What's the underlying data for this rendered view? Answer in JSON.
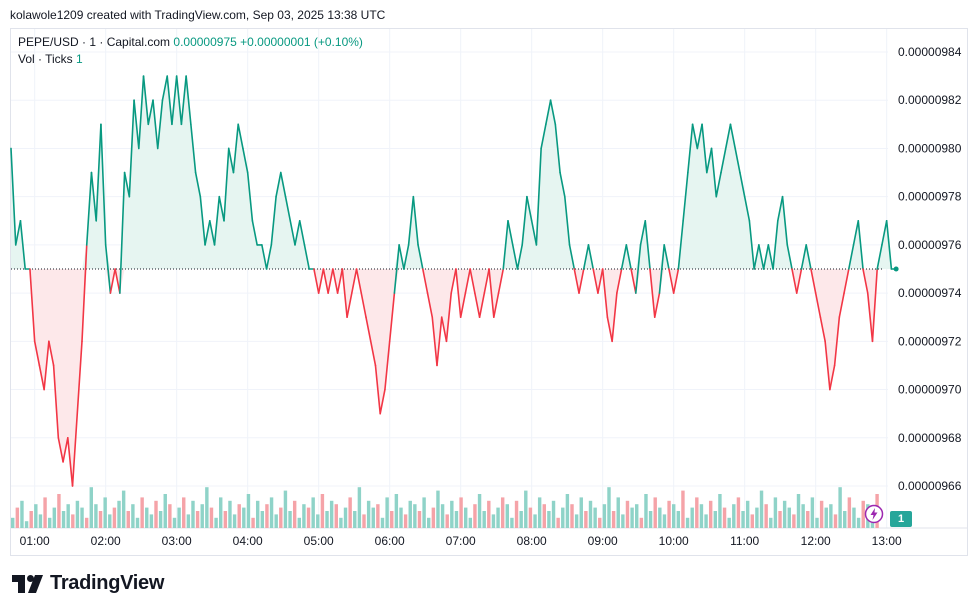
{
  "header": {
    "credit": "kolawole1209 created with TradingView.com, Sep 03, 2025 13:38 UTC"
  },
  "legend": {
    "symbol": "PEPE/USD · 1 · Capital.com",
    "price": "0.00000975",
    "change": "+0.00000001 (+0.10%)",
    "volume_label": "Vol · Ticks",
    "volume_value": "1"
  },
  "volume_badge": "1",
  "logo": {
    "text": "TradingView",
    "icon": "tradingview-logo-icon"
  },
  "event_icon": "lightning-icon",
  "colors": {
    "up": "#089981",
    "down": "#f23645",
    "up_fill": "#e6f5f1",
    "down_fill": "#fde8ea",
    "vol_up": "#8fd3c8",
    "vol_down": "#f5a3a8",
    "grid": "#f0f3fa"
  },
  "chart_data": {
    "type": "line",
    "symbol": "PEPE/USD",
    "interval": "1",
    "baseline": 9.75e-06,
    "ylim": [
      9.64e-06,
      9.85e-06
    ],
    "y_ticks": [
      "0.00000984",
      "0.00000982",
      "0.00000980",
      "0.00000978",
      "0.00000976",
      "0.00000974",
      "0.00000972",
      "0.00000970",
      "0.00000968",
      "0.00000966"
    ],
    "x_ticks": [
      "01:00",
      "02:00",
      "03:00",
      "04:00",
      "05:00",
      "06:00",
      "07:00",
      "08:00",
      "09:00",
      "10:00",
      "11:00",
      "12:00",
      "13:00"
    ],
    "series": [
      {
        "points": [
          [
            "00:40",
            980
          ],
          [
            "00:44",
            976
          ],
          [
            "00:48",
            977
          ],
          [
            "00:52",
            975
          ],
          [
            "00:56",
            975
          ],
          [
            "01:00",
            972
          ],
          [
            "01:04",
            971
          ],
          [
            "01:08",
            970
          ],
          [
            "01:12",
            972
          ],
          [
            "01:16",
            971
          ],
          [
            "01:20",
            968
          ],
          [
            "01:24",
            967
          ],
          [
            "01:28",
            968
          ],
          [
            "01:32",
            966
          ],
          [
            "01:36",
            969
          ],
          [
            "01:40",
            972
          ],
          [
            "01:44",
            976
          ],
          [
            "01:48",
            979
          ],
          [
            "01:52",
            977
          ],
          [
            "01:56",
            981
          ],
          [
            "02:00",
            976
          ],
          [
            "02:04",
            974
          ],
          [
            "02:08",
            975
          ],
          [
            "02:12",
            974
          ],
          [
            "02:16",
            979
          ],
          [
            "02:20",
            978
          ],
          [
            "02:24",
            982
          ],
          [
            "02:28",
            980
          ],
          [
            "02:32",
            983
          ],
          [
            "02:36",
            981
          ],
          [
            "02:40",
            982
          ],
          [
            "02:44",
            980
          ],
          [
            "02:48",
            982
          ],
          [
            "02:52",
            983
          ],
          [
            "02:56",
            981
          ],
          [
            "03:00",
            983
          ],
          [
            "03:04",
            981
          ],
          [
            "03:08",
            983
          ],
          [
            "03:12",
            981
          ],
          [
            "03:16",
            979
          ],
          [
            "03:20",
            978
          ],
          [
            "03:24",
            976
          ],
          [
            "03:28",
            977
          ],
          [
            "03:32",
            976
          ],
          [
            "03:36",
            978
          ],
          [
            "03:40",
            977
          ],
          [
            "03:44",
            980
          ],
          [
            "03:48",
            979
          ],
          [
            "03:52",
            981
          ],
          [
            "03:56",
            980
          ],
          [
            "04:00",
            979
          ],
          [
            "04:04",
            977
          ],
          [
            "04:08",
            976
          ],
          [
            "04:12",
            976
          ],
          [
            "04:16",
            975
          ],
          [
            "04:20",
            976
          ],
          [
            "04:24",
            978
          ],
          [
            "04:28",
            979
          ],
          [
            "04:32",
            978
          ],
          [
            "04:36",
            977
          ],
          [
            "04:40",
            976
          ],
          [
            "04:44",
            977
          ],
          [
            "04:48",
            976
          ],
          [
            "04:52",
            975
          ],
          [
            "04:56",
            975
          ],
          [
            "05:00",
            974
          ],
          [
            "05:04",
            975
          ],
          [
            "05:08",
            974
          ],
          [
            "05:12",
            975
          ],
          [
            "05:16",
            974
          ],
          [
            "05:20",
            975
          ],
          [
            "05:24",
            973
          ],
          [
            "05:28",
            974
          ],
          [
            "05:32",
            975
          ],
          [
            "05:36",
            974
          ],
          [
            "05:40",
            973
          ],
          [
            "05:44",
            972
          ],
          [
            "05:48",
            971
          ],
          [
            "05:52",
            969
          ],
          [
            "05:56",
            970
          ],
          [
            "06:00",
            972
          ],
          [
            "06:04",
            974
          ],
          [
            "06:08",
            976
          ],
          [
            "06:12",
            975
          ],
          [
            "06:16",
            976
          ],
          [
            "06:20",
            978
          ],
          [
            "06:24",
            976
          ],
          [
            "06:28",
            975
          ],
          [
            "06:32",
            974
          ],
          [
            "06:36",
            973
          ],
          [
            "06:40",
            971
          ],
          [
            "06:44",
            973
          ],
          [
            "06:48",
            972
          ],
          [
            "06:52",
            974
          ],
          [
            "06:56",
            975
          ],
          [
            "07:00",
            973
          ],
          [
            "07:04",
            974
          ],
          [
            "07:08",
            975
          ],
          [
            "07:12",
            974
          ],
          [
            "07:16",
            973
          ],
          [
            "07:20",
            974
          ],
          [
            "07:24",
            975
          ],
          [
            "07:28",
            973
          ],
          [
            "07:32",
            974
          ],
          [
            "07:36",
            975
          ],
          [
            "07:40",
            977
          ],
          [
            "07:44",
            976
          ],
          [
            "07:48",
            975
          ],
          [
            "07:52",
            976
          ],
          [
            "07:56",
            978
          ],
          [
            "08:00",
            977
          ],
          [
            "08:04",
            976
          ],
          [
            "08:08",
            980
          ],
          [
            "08:12",
            981
          ],
          [
            "08:16",
            982
          ],
          [
            "08:20",
            981
          ],
          [
            "08:24",
            979
          ],
          [
            "08:28",
            978
          ],
          [
            "08:32",
            976
          ],
          [
            "08:36",
            975
          ],
          [
            "08:40",
            974
          ],
          [
            "08:44",
            975
          ],
          [
            "08:48",
            976
          ],
          [
            "08:52",
            975
          ],
          [
            "08:56",
            974
          ],
          [
            "09:00",
            975
          ],
          [
            "09:04",
            973
          ],
          [
            "09:08",
            972
          ],
          [
            "09:12",
            974
          ],
          [
            "09:16",
            975
          ],
          [
            "09:20",
            976
          ],
          [
            "09:24",
            975
          ],
          [
            "09:28",
            974
          ],
          [
            "09:32",
            976
          ],
          [
            "09:36",
            977
          ],
          [
            "09:40",
            975
          ],
          [
            "09:44",
            973
          ],
          [
            "09:48",
            974
          ],
          [
            "09:52",
            976
          ],
          [
            "09:56",
            975
          ],
          [
            "10:00",
            974
          ],
          [
            "10:04",
            975
          ],
          [
            "10:08",
            977
          ],
          [
            "10:12",
            979
          ],
          [
            "10:16",
            981
          ],
          [
            "10:20",
            980
          ],
          [
            "10:24",
            981
          ],
          [
            "10:28",
            979
          ],
          [
            "10:32",
            980
          ],
          [
            "10:36",
            978
          ],
          [
            "10:40",
            979
          ],
          [
            "10:44",
            980
          ],
          [
            "10:48",
            981
          ],
          [
            "10:52",
            980
          ],
          [
            "10:56",
            979
          ],
          [
            "11:00",
            978
          ],
          [
            "11:04",
            977
          ],
          [
            "11:08",
            975
          ],
          [
            "11:12",
            976
          ],
          [
            "11:16",
            975
          ],
          [
            "11:20",
            976
          ],
          [
            "11:24",
            975
          ],
          [
            "11:28",
            977
          ],
          [
            "11:32",
            978
          ],
          [
            "11:36",
            976
          ],
          [
            "11:40",
            975
          ],
          [
            "11:44",
            974
          ],
          [
            "11:48",
            975
          ],
          [
            "11:52",
            976
          ],
          [
            "11:56",
            975
          ],
          [
            "12:00",
            974
          ],
          [
            "12:04",
            973
          ],
          [
            "12:08",
            972
          ],
          [
            "12:12",
            970
          ],
          [
            "12:16",
            971
          ],
          [
            "12:20",
            973
          ],
          [
            "12:24",
            974
          ],
          [
            "12:28",
            975
          ],
          [
            "12:32",
            976
          ],
          [
            "12:36",
            977
          ],
          [
            "12:40",
            975
          ],
          [
            "12:44",
            974
          ],
          [
            "12:48",
            972
          ],
          [
            "12:52",
            975
          ],
          [
            "12:56",
            976
          ],
          [
            "13:00",
            977
          ],
          [
            "13:04",
            975
          ],
          [
            "13:08",
            975
          ]
        ]
      }
    ],
    "volume": [
      3,
      6,
      8,
      2,
      5,
      7,
      4,
      9,
      3,
      6,
      10,
      5,
      7,
      4,
      8,
      6,
      3,
      12,
      7,
      5,
      9,
      4,
      6,
      8,
      11,
      5,
      7,
      3,
      9,
      6,
      4,
      8,
      5,
      10,
      7,
      3,
      6,
      9,
      4,
      8,
      5,
      7,
      12,
      6,
      3,
      9,
      5,
      8,
      4,
      7,
      6,
      10,
      3,
      8,
      5,
      7,
      9,
      4,
      6,
      11,
      5,
      8,
      3,
      7,
      6,
      9,
      4,
      10,
      5,
      8,
      7,
      3,
      6,
      9,
      5,
      12,
      4,
      8,
      6,
      7,
      3,
      9,
      5,
      10,
      6,
      4,
      8,
      7,
      5,
      9,
      3,
      6,
      11,
      7,
      4,
      8,
      5,
      9,
      6,
      3,
      7,
      10,
      5,
      8,
      4,
      6,
      9,
      7,
      3,
      8,
      5,
      11,
      6,
      4,
      9,
      7,
      5,
      8,
      3,
      6,
      10,
      7,
      4,
      9,
      5,
      8,
      6,
      3,
      7,
      12,
      5,
      9,
      4,
      8,
      6,
      7,
      3,
      10,
      5,
      9,
      6,
      4,
      8,
      7,
      5,
      11,
      3,
      6,
      9,
      7,
      4,
      8,
      5,
      10,
      6,
      3,
      7,
      9,
      5,
      8,
      4,
      6,
      11,
      7,
      3,
      9,
      5,
      8,
      6,
      4,
      10,
      7,
      5,
      9,
      3,
      8,
      6,
      7,
      4,
      12,
      5,
      9,
      6,
      3,
      8,
      7,
      5,
      10
    ]
  }
}
